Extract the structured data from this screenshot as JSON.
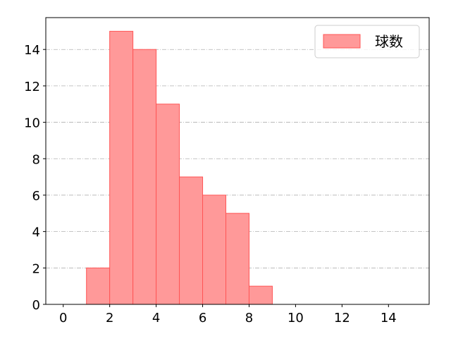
{
  "chart_data": {
    "type": "bar",
    "subtype": "histogram",
    "bins": [
      [
        1,
        2
      ],
      [
        2,
        3
      ],
      [
        3,
        4
      ],
      [
        4,
        5
      ],
      [
        5,
        6
      ],
      [
        6,
        7
      ],
      [
        7,
        8
      ],
      [
        8,
        9
      ]
    ],
    "values": [
      2,
      15,
      14,
      11,
      7,
      6,
      5,
      1
    ],
    "xlim": [
      -0.75,
      15.75
    ],
    "ylim": [
      0,
      15.75
    ],
    "xticks": [
      0,
      2,
      4,
      6,
      8,
      10,
      12,
      14
    ],
    "yticks": [
      0,
      2,
      4,
      6,
      8,
      10,
      12,
      14
    ],
    "grid": "y, dash-dot",
    "legend": {
      "placement": "top-right",
      "entries": [
        "球数"
      ]
    },
    "series": [
      {
        "name": "球数"
      }
    ],
    "colors": {
      "bar_fill": "#ff9999",
      "bar_edge": "#ff5555",
      "grid": "#b0b0b0"
    }
  }
}
